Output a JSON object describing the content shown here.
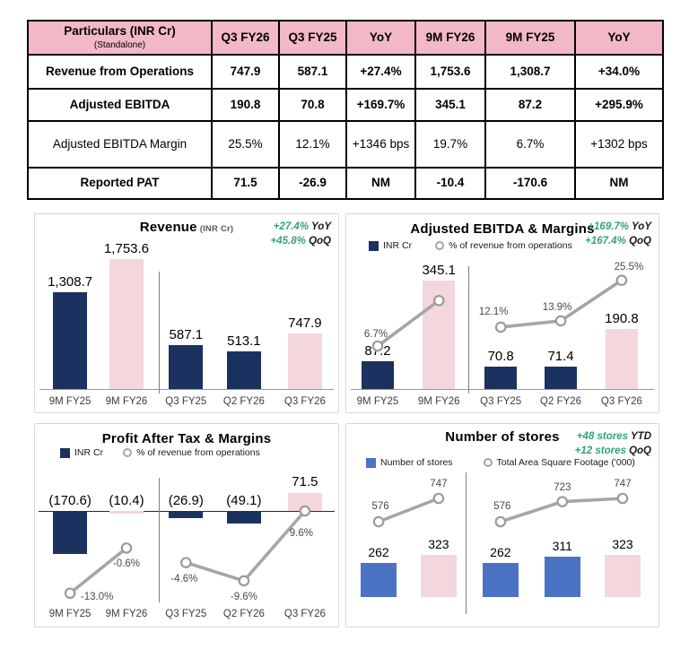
{
  "colors": {
    "navy": "#1b3160",
    "pink": "#f3d7dd",
    "blue": "#4a73c4",
    "header_pink": "#f2b8c5",
    "green": "#35a37d",
    "line_gray": "#a6a6a6",
    "marker_stroke": "#9b9b9b"
  },
  "table": {
    "header": {
      "first": "Particulars (INR Cr)",
      "first_sub": "(Standalone)",
      "cols": [
        "Q3 FY26",
        "Q3 FY25",
        "YoY",
        "9M FY26",
        "9M FY25",
        "YoY"
      ]
    },
    "rows": [
      {
        "label": "Revenue from Operations",
        "bold": true,
        "cells": [
          "747.9",
          "587.1",
          "+27.4%",
          "1,753.6",
          "1,308.7",
          "+34.0%"
        ]
      },
      {
        "label": "Adjusted EBITDA",
        "bold": true,
        "cells": [
          "190.8",
          "70.8",
          "+169.7%",
          "345.1",
          "87.2",
          "+295.9%"
        ]
      },
      {
        "label": "Adjusted EBITDA Margin",
        "bold": false,
        "cells": [
          "25.5%",
          "12.1%",
          "+1346 bps",
          "19.7%",
          "6.7%",
          "+1302 bps"
        ]
      },
      {
        "label": "Reported PAT",
        "bold": true,
        "cells": [
          "71.5",
          "-26.9",
          "NM",
          "-10.4",
          "-170.6",
          "NM"
        ]
      }
    ]
  },
  "chart_data": [
    {
      "id": "revenue",
      "type": "bar",
      "title": "Revenue",
      "title_note": "(INR Cr)",
      "badges": [
        {
          "value": "+27.4%",
          "label": "YoY"
        },
        {
          "value": "+45.8%",
          "label": "QoQ"
        }
      ],
      "categories": [
        "9M FY25",
        "9M FY26",
        "Q3 FY25",
        "Q2 FY26",
        "Q3 FY26"
      ],
      "values": [
        1308.7,
        1753.6,
        587.1,
        513.1,
        747.9
      ],
      "value_labels": [
        "1,308.7",
        "1,753.6",
        "587.1",
        "513.1",
        "747.9"
      ],
      "bar_palette": [
        "navy",
        "pink",
        "navy",
        "navy",
        "pink"
      ],
      "ylim": [
        0,
        1800
      ],
      "grid": false,
      "group_divider_after_index": 1
    },
    {
      "id": "adjusted-ebitda",
      "type": "bar+line",
      "title": "Adjusted EBITDA & Margins",
      "badges": [
        {
          "value": "+169.7%",
          "label": "YoY"
        },
        {
          "value": "+167.4%",
          "label": "QoQ"
        }
      ],
      "legend": [
        {
          "swatch": "navy-square",
          "label": "INR Cr"
        },
        {
          "swatch": "circle",
          "label": "% of revenue from operations"
        }
      ],
      "categories": [
        "9M FY25",
        "9M FY26",
        "Q3 FY25",
        "Q2 FY26",
        "Q3 FY26"
      ],
      "values": [
        87.2,
        345.1,
        70.8,
        71.4,
        190.8
      ],
      "value_labels": [
        "87.2",
        "345.1",
        "70.8",
        "71.4",
        "190.8"
      ],
      "bar_palette": [
        "navy",
        "pink",
        "navy",
        "navy",
        "pink"
      ],
      "line": {
        "name": "% of revenue from operations",
        "values": [
          6.7,
          19.7,
          12.1,
          13.9,
          25.5
        ],
        "labels": [
          "6.7%",
          "",
          "12.1%",
          "13.9%",
          "25.5%"
        ]
      },
      "ylim": [
        0,
        380
      ],
      "grid": false,
      "group_divider_after_index": 1
    },
    {
      "id": "profit-after-tax",
      "type": "bar+line",
      "title": "Profit After Tax & Margins",
      "badges": [],
      "legend": [
        {
          "swatch": "navy-square",
          "label": "INR Cr"
        },
        {
          "swatch": "circle",
          "label": "% of revenue from operations"
        }
      ],
      "categories": [
        "9M FY25",
        "9M FY26",
        "Q3 FY25",
        "Q2 FY26",
        "Q3 FY26"
      ],
      "values": [
        -170.6,
        -10.4,
        -26.9,
        -49.1,
        71.5
      ],
      "value_labels": [
        "(170.6)",
        "(10.4)",
        "(26.9)",
        "(49.1)",
        "71.5"
      ],
      "bar_palette": [
        "navy",
        "pink",
        "navy",
        "navy",
        "pink"
      ],
      "line": {
        "name": "% of revenue from operations",
        "values": [
          -13.0,
          -0.6,
          -4.6,
          -9.6,
          9.6
        ],
        "labels": [
          "-13.0%",
          "-0.6%",
          "-4.6%",
          "-9.6%",
          "9.6%"
        ]
      },
      "ylim": [
        -200,
        100
      ],
      "grid": false,
      "group_divider_after_index": 1
    },
    {
      "id": "number-of-stores",
      "type": "bar+line",
      "title": "Number of stores",
      "badges": [
        {
          "value": "+48 stores",
          "label": "YTD"
        },
        {
          "value": "+12 stores",
          "label": "QoQ"
        }
      ],
      "legend": [
        {
          "swatch": "blue-square",
          "label": "Number of stores"
        },
        {
          "swatch": "circle",
          "label": "Total Area Square Footage ('000)"
        }
      ],
      "categories": [
        "",
        "",
        "",
        "",
        ""
      ],
      "values": [
        262,
        323,
        262,
        311,
        323
      ],
      "value_labels": [
        "262",
        "323",
        "262",
        "311",
        "323"
      ],
      "bar_palette": [
        "blue",
        "pink",
        "blue",
        "blue",
        "pink"
      ],
      "line": {
        "name": "Total Area Square Footage ('000)",
        "values": [
          576,
          747,
          576,
          723,
          747
        ],
        "labels": [
          "576",
          "747",
          "576",
          "723",
          "747"
        ]
      },
      "ylim": [
        0,
        400
      ],
      "grid": false,
      "group_divider_after_index": 1
    }
  ]
}
